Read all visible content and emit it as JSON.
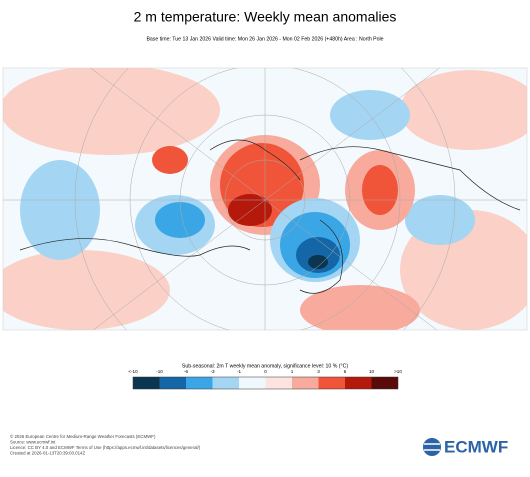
{
  "header": {
    "title": "2 m temperature: Weekly mean anomalies",
    "subtitle": "Base time: Tue 13 Jan 2026 Valid time: Mon 26 Jan 2026 - Mon 02 Feb 2026 (+480h) Area : North Pole"
  },
  "legend": {
    "title": "Sub-seasonal: 2m T weekly mean anomaly, significance level: 10 % (°C)",
    "labels": [
      "<-10",
      "-10",
      "-6",
      "-3",
      "-1",
      "0",
      "1",
      "3",
      "6",
      "10",
      ">10"
    ],
    "colors": [
      "#0b3550",
      "#1466a6",
      "#3aa6e6",
      "#a4d6f4",
      "#eef8fd",
      "#fde4e0",
      "#f8ab9c",
      "#f0553a",
      "#b5190c",
      "#5a0a08"
    ]
  },
  "footer": {
    "lines": [
      "© 2026 European Centre for Medium-Range Weather Forecasts (ECMWF)",
      "Source: www.ecmwf.int",
      "Licence: CC BY 4.0 and ECMWF Terms of Use (https://apps.ecmwf.int/datasets/licences/general/)",
      "Created at 2026-01-13T20:39:03.014Z"
    ],
    "logo": "ECMWF"
  }
}
